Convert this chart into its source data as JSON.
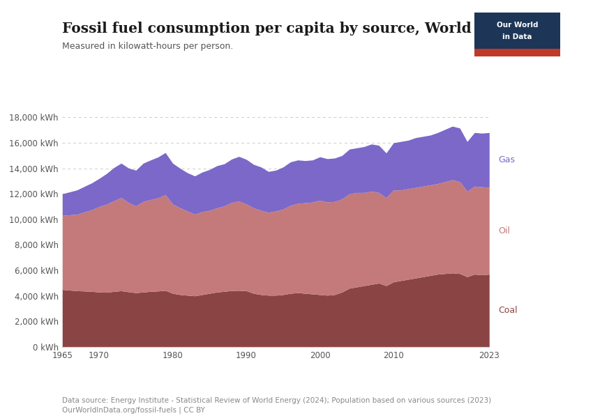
{
  "title": "Fossil fuel consumption per capita by source, World",
  "subtitle": "Measured in kilowatt-hours per person.",
  "source_text": "Data source: Energy Institute - Statistical Review of World Energy (2024); Population based on various sources (2023)\nOurWorldInData.org/fossil-fuels | CC BY",
  "colors": {
    "coal": "#8B4444",
    "oil": "#C47A7A",
    "gas": "#7B68C8"
  },
  "years": [
    1965,
    1966,
    1967,
    1968,
    1969,
    1970,
    1971,
    1972,
    1973,
    1974,
    1975,
    1976,
    1977,
    1978,
    1979,
    1980,
    1981,
    1982,
    1983,
    1984,
    1985,
    1986,
    1987,
    1988,
    1989,
    1990,
    1991,
    1992,
    1993,
    1994,
    1995,
    1996,
    1997,
    1998,
    1999,
    2000,
    2001,
    2002,
    2003,
    2004,
    2005,
    2006,
    2007,
    2008,
    2009,
    2010,
    2011,
    2012,
    2013,
    2014,
    2015,
    2016,
    2017,
    2018,
    2019,
    2020,
    2021,
    2022,
    2023
  ],
  "coal": [
    4500,
    4450,
    4400,
    4380,
    4350,
    4300,
    4280,
    4350,
    4400,
    4320,
    4250,
    4300,
    4350,
    4380,
    4430,
    4200,
    4100,
    4050,
    4000,
    4100,
    4200,
    4300,
    4350,
    4420,
    4430,
    4400,
    4200,
    4100,
    4050,
    4050,
    4100,
    4200,
    4250,
    4200,
    4150,
    4100,
    4050,
    4100,
    4300,
    4600,
    4700,
    4800,
    4900,
    5000,
    4800,
    5100,
    5200,
    5300,
    5400,
    5500,
    5600,
    5700,
    5750,
    5800,
    5750,
    5500,
    5700,
    5650,
    5700
  ],
  "oil": [
    5800,
    5900,
    6000,
    6200,
    6400,
    6700,
    6900,
    7100,
    7300,
    7000,
    6800,
    7100,
    7200,
    7300,
    7500,
    7000,
    6800,
    6600,
    6400,
    6500,
    6500,
    6600,
    6700,
    6900,
    7000,
    6800,
    6700,
    6600,
    6500,
    6600,
    6700,
    6900,
    7000,
    7100,
    7200,
    7400,
    7300,
    7300,
    7300,
    7400,
    7400,
    7300,
    7300,
    7100,
    6900,
    7200,
    7100,
    7100,
    7100,
    7100,
    7100,
    7100,
    7200,
    7300,
    7200,
    6700,
    6900,
    6900,
    6800
  ],
  "gas": [
    1700,
    1800,
    1900,
    2000,
    2100,
    2200,
    2400,
    2600,
    2700,
    2700,
    2800,
    3000,
    3100,
    3200,
    3300,
    3200,
    3100,
    3000,
    3000,
    3100,
    3200,
    3300,
    3300,
    3400,
    3500,
    3500,
    3400,
    3400,
    3200,
    3200,
    3300,
    3400,
    3400,
    3300,
    3300,
    3400,
    3400,
    3400,
    3400,
    3500,
    3500,
    3600,
    3700,
    3700,
    3500,
    3700,
    3800,
    3800,
    3900,
    3900,
    3900,
    4000,
    4100,
    4200,
    4200,
    3900,
    4200,
    4200,
    4300
  ],
  "ylim": [
    0,
    19000
  ],
  "yticks": [
    0,
    2000,
    4000,
    6000,
    8000,
    10000,
    12000,
    14000,
    16000,
    18000
  ],
  "xticks": [
    1965,
    1970,
    1980,
    1990,
    2000,
    2010,
    2023
  ],
  "background_color": "#ffffff",
  "logo_bg": "#1d3557",
  "logo_red": "#c0392b",
  "title_color": "#1a1a1a",
  "subtitle_color": "#555555",
  "source_color": "#888888",
  "grid_color": "#cccccc",
  "tick_color": "#555555"
}
